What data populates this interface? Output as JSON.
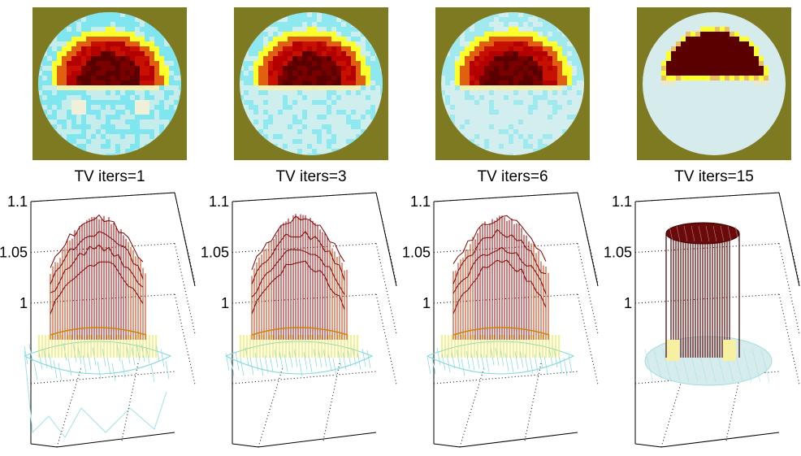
{
  "chart_data": [
    {
      "type": "heatmap",
      "title": "TV iters=1",
      "iterations": 1,
      "zticks": [
        "1.1",
        "1.05",
        "1"
      ],
      "zlim": [
        0.98,
        1.1
      ],
      "colors": {
        "background": "#7e7a22",
        "base": "#c6ecec",
        "cyan": "#7fe6ef",
        "yellow": "#ffff2a",
        "orange": "#e06010",
        "red": "#b40000",
        "dark": "#5a0000"
      },
      "profile": {
        "top": 1.09,
        "base": 0.985,
        "flat_top": false,
        "noise": "high"
      }
    },
    {
      "type": "heatmap",
      "title": "TV iters=3",
      "iterations": 3,
      "zticks": [
        "1.1",
        "1.05",
        "1"
      ],
      "zlim": [
        0.98,
        1.1
      ],
      "colors": {
        "background": "#7e7a22",
        "base": "#cfeeee",
        "cyan": "#8ee8ef",
        "yellow": "#ffff2a",
        "orange": "#e06010",
        "red": "#b40000",
        "dark": "#5a0000"
      },
      "profile": {
        "top": 1.09,
        "base": 0.985,
        "flat_top": false,
        "noise": "medium"
      }
    },
    {
      "type": "heatmap",
      "title": "TV iters=6",
      "iterations": 6,
      "zticks": [
        "1.1",
        "1.05",
        "1"
      ],
      "zlim": [
        0.98,
        1.1
      ],
      "colors": {
        "background": "#7e7a22",
        "base": "#d2eeee",
        "cyan": "#a0eaef",
        "yellow": "#ffff2a",
        "orange": "#e06010",
        "red": "#b40000",
        "dark": "#5a0000"
      },
      "profile": {
        "top": 1.09,
        "base": 0.985,
        "flat_top": false,
        "noise": "medium"
      }
    },
    {
      "type": "heatmap",
      "title": "TV iters=15",
      "iterations": 15,
      "zticks": [
        "1.1",
        "1.05",
        "1"
      ],
      "zlim": [
        0.98,
        1.1
      ],
      "colors": {
        "background": "#7e7a22",
        "base": "#d6ebeb",
        "cyan": "#d6ebeb",
        "yellow": "#ffff2a",
        "orange": "#e8c060",
        "red": "#5a0000",
        "dark": "#5a0000"
      },
      "profile": {
        "top": 1.08,
        "base": 0.985,
        "flat_top": true,
        "noise": "low"
      }
    }
  ]
}
